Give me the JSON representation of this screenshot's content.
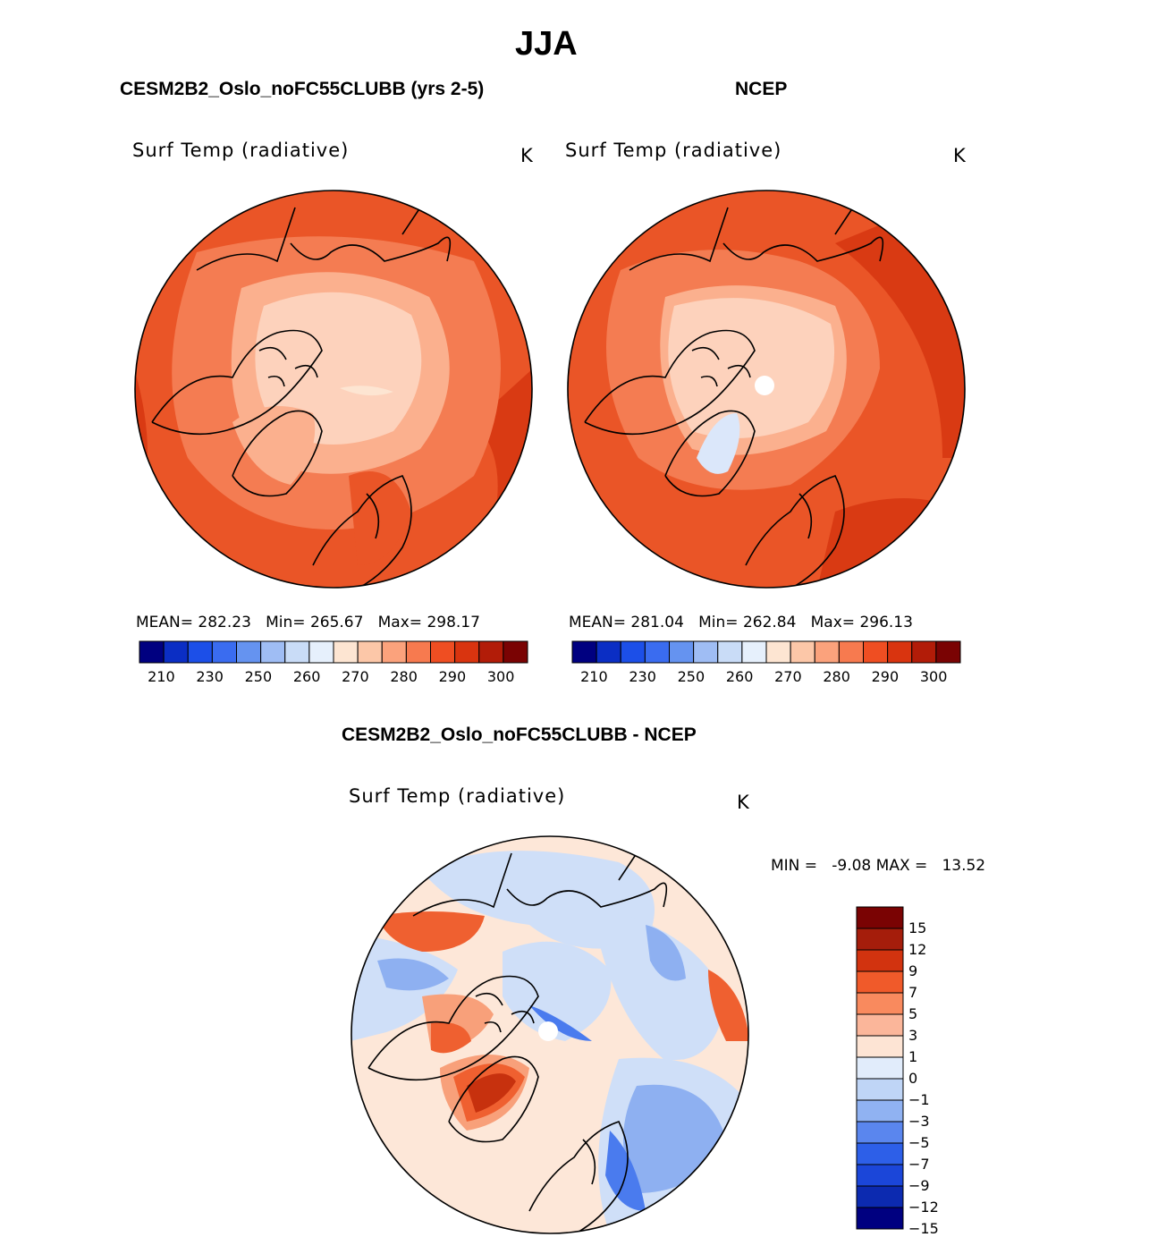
{
  "page_title": "JJA",
  "panels": [
    {
      "heading": "CESM2B2_Oslo_noFC55CLUBB (yrs 2-5)",
      "variable": "Surf Temp (radiative)",
      "units": "K",
      "mean_label": "MEAN=",
      "mean_value": "282.23",
      "min_label": "Min=",
      "min_value": "265.67",
      "max_label": "Max=",
      "max_value": "298.17"
    },
    {
      "heading": "NCEP",
      "variable": "Surf Temp (radiative)",
      "units": "K",
      "mean_label": "MEAN=",
      "mean_value": "281.04",
      "min_label": "Min=",
      "min_value": "262.84",
      "max_label": "Max=",
      "max_value": "296.13"
    }
  ],
  "diff_panel": {
    "heading": "CESM2B2_Oslo_noFC55CLUBB - NCEP",
    "variable": "Surf Temp (radiative)",
    "units": "K",
    "range_text": "MIN =   -9.08 MAX =   13.52"
  },
  "abs_colorbar": {
    "colors": [
      "#000080",
      "#0b2ec4",
      "#1c4fe8",
      "#3a6cf0",
      "#6593f0",
      "#9fbdf4",
      "#c9dcf7",
      "#e6f0fc",
      "#fde5d2",
      "#fcc7a8",
      "#fba27c",
      "#f77a4f",
      "#ef4e22",
      "#d9340f",
      "#b21c08",
      "#7a0303"
    ],
    "labels": [
      "210",
      "230",
      "250",
      "260",
      "270",
      "280",
      "290",
      "300"
    ]
  },
  "diff_colorbar": {
    "colors_top_to_bottom": [
      "#7a0303",
      "#a51d0b",
      "#d2330f",
      "#f05a2a",
      "#f98a5e",
      "#fbb69a",
      "#fde4d4",
      "#e1ecfb",
      "#bfd5f6",
      "#90b2f2",
      "#5a86ee",
      "#2d5fe8",
      "#1b46d9",
      "#0c2ab0",
      "#000080"
    ],
    "labels": [
      "15",
      "12",
      "9",
      "7",
      "5",
      "3",
      "1",
      "0",
      "−1",
      "−3",
      "−5",
      "−7",
      "−9",
      "−12",
      "−15"
    ]
  },
  "map_fill_colors": {
    "outer": "#ea5527",
    "mid": "#f47c52",
    "inner": "#fbb08e",
    "core": "#fdd2bc",
    "ice": "#dbe7fa",
    "warm_edge": "#d93a13",
    "land": "#000000",
    "diff_base": "#fde7d8",
    "diff_cool": "#cfdff8",
    "diff_cool2": "#8eb0f1",
    "diff_cool3": "#4a7bee",
    "diff_warm": "#f8a07a",
    "diff_warm2": "#ef6030",
    "diff_warm3": "#c7310e"
  }
}
